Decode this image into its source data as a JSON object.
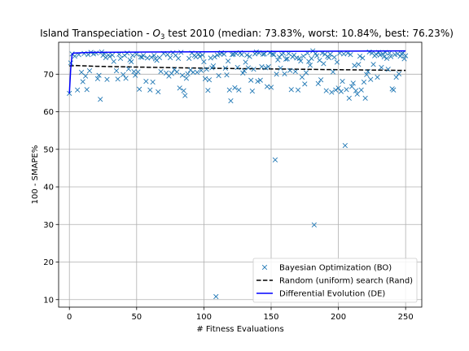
{
  "chart_data": {
    "type": "scatter",
    "title": "Island Transpeciation - O3 test 2010 (median: 73.83%, worst: 10.84%, best: 76.23%)",
    "title_parts": {
      "prefix": "Island Transpeciation - ",
      "symbol": "O",
      "subscript": "3",
      "suffix": " test 2010 (median: 73.83%, worst: 10.84%, best: 76.23%)"
    },
    "xlabel": "# Fitness Evaluations",
    "ylabel": "100 - SMAPE%",
    "xlim": [
      -8,
      262
    ],
    "ylim": [
      8,
      78.5
    ],
    "x_ticks": [
      0,
      50,
      100,
      150,
      200,
      250
    ],
    "y_ticks": [
      10,
      20,
      30,
      40,
      50,
      60,
      70
    ],
    "grid": true,
    "legend_position": "lower-right",
    "colors": {
      "bo": "#1f77b4",
      "rand": "#000000",
      "de": "#0000ff",
      "grid": "#b0b0b0"
    },
    "series": [
      {
        "name": "Bayesian Optimization (BO)",
        "kind": "scatter-x",
        "points": [
          [
            0,
            64.9
          ],
          [
            1,
            73
          ],
          [
            2,
            75.4
          ],
          [
            4,
            74.8
          ],
          [
            6,
            65.8
          ],
          [
            7,
            75.2
          ],
          [
            9,
            70.5
          ],
          [
            10,
            68
          ],
          [
            11,
            75.5
          ],
          [
            12,
            69.5
          ],
          [
            13,
            65.9
          ],
          [
            14,
            75.2
          ],
          [
            15,
            70.9
          ],
          [
            16,
            75.8
          ],
          [
            18,
            75.4
          ],
          [
            20,
            75.6
          ],
          [
            21,
            68.8
          ],
          [
            22,
            69.7
          ],
          [
            23,
            63.3
          ],
          [
            24,
            75.9
          ],
          [
            25,
            75
          ],
          [
            26,
            75.4
          ],
          [
            27,
            74.4
          ],
          [
            28,
            68.6
          ],
          [
            29,
            75.1
          ],
          [
            30,
            74.7
          ],
          [
            32,
            75.1
          ],
          [
            33,
            73.4
          ],
          [
            35,
            70.9
          ],
          [
            36,
            68.7
          ],
          [
            37,
            75.3
          ],
          [
            38,
            74.2
          ],
          [
            40,
            69.9
          ],
          [
            41,
            75
          ],
          [
            42,
            68.9
          ],
          [
            43,
            75.6
          ],
          [
            44,
            71.4
          ],
          [
            45,
            73.8
          ],
          [
            46,
            73.3
          ],
          [
            47,
            75
          ],
          [
            48,
            70.7
          ],
          [
            49,
            69.7
          ],
          [
            50,
            75.3
          ],
          [
            51,
            70.6
          ],
          [
            52,
            66
          ],
          [
            53,
            74.6
          ],
          [
            54,
            74.5
          ],
          [
            55,
            75
          ],
          [
            57,
            68.1
          ],
          [
            58,
            74.3
          ],
          [
            60,
            65.8
          ],
          [
            61,
            74.5
          ],
          [
            62,
            67.9
          ],
          [
            63,
            75
          ],
          [
            64,
            74.1
          ],
          [
            65,
            73.7
          ],
          [
            66,
            65.3
          ],
          [
            67,
            74.4
          ],
          [
            68,
            70.7
          ],
          [
            70,
            75.5
          ],
          [
            72,
            70.3
          ],
          [
            73,
            75.2
          ],
          [
            74,
            69.5
          ],
          [
            75,
            74.4
          ],
          [
            76,
            70.2
          ],
          [
            77,
            75.7
          ],
          [
            78,
            71.2
          ],
          [
            79,
            75
          ],
          [
            80,
            70.6
          ],
          [
            81,
            74.2
          ],
          [
            82,
            66.3
          ],
          [
            83,
            75.8
          ],
          [
            84,
            69.7
          ],
          [
            85,
            65.6
          ],
          [
            86,
            64.3
          ],
          [
            87,
            68.9
          ],
          [
            88,
            70.1
          ],
          [
            89,
            74.2
          ],
          [
            90,
            71.1
          ],
          [
            91,
            75.6
          ],
          [
            92,
            70.5
          ],
          [
            93,
            75
          ],
          [
            94,
            74.6
          ],
          [
            95,
            70.5
          ],
          [
            96,
            75.3
          ],
          [
            97,
            74.7
          ],
          [
            98,
            71
          ],
          [
            99,
            75.1
          ],
          [
            100,
            73.3
          ],
          [
            101,
            68.8
          ],
          [
            102,
            71.3
          ],
          [
            103,
            65.7
          ],
          [
            104,
            68.5
          ],
          [
            105,
            74.3
          ],
          [
            106,
            71.7
          ],
          [
            107,
            72.2
          ],
          [
            108,
            74.6
          ],
          [
            109,
            10.8
          ],
          [
            110,
            75.1
          ],
          [
            111,
            69.6
          ],
          [
            112,
            75.3
          ],
          [
            113,
            75.7
          ],
          [
            115,
            75.3
          ],
          [
            116,
            71.6
          ],
          [
            117,
            69.8
          ],
          [
            118,
            73.5
          ],
          [
            119,
            65.8
          ],
          [
            120,
            62.9
          ],
          [
            121,
            75.2
          ],
          [
            122,
            75.3
          ],
          [
            123,
            66.4
          ],
          [
            124,
            75.5
          ],
          [
            125,
            71.8
          ],
          [
            126,
            65.8
          ],
          [
            127,
            75.7
          ],
          [
            128,
            75.2
          ],
          [
            129,
            70.3
          ],
          [
            130,
            70.9
          ],
          [
            131,
            73.2
          ],
          [
            132,
            75.1
          ],
          [
            133,
            71.7
          ],
          [
            134,
            74.7
          ],
          [
            135,
            68.4
          ],
          [
            136,
            65.5
          ],
          [
            137,
            71.3
          ],
          [
            138,
            75.4
          ],
          [
            139,
            75.9
          ],
          [
            140,
            68.1
          ],
          [
            141,
            75.7
          ],
          [
            142,
            68.4
          ],
          [
            143,
            72
          ],
          [
            144,
            75.3
          ],
          [
            145,
            75.4
          ],
          [
            146,
            71.7
          ],
          [
            147,
            66.7
          ],
          [
            148,
            72
          ],
          [
            149,
            75.7
          ],
          [
            150,
            66.5
          ],
          [
            151,
            75.3
          ],
          [
            152,
            75.2
          ],
          [
            153,
            47.2
          ],
          [
            154,
            70
          ],
          [
            155,
            73.8
          ],
          [
            156,
            74.6
          ],
          [
            157,
            71.6
          ],
          [
            158,
            75.2
          ],
          [
            159,
            75.6
          ],
          [
            160,
            70.1
          ],
          [
            161,
            74
          ],
          [
            162,
            74.1
          ],
          [
            163,
            75.5
          ],
          [
            164,
            71
          ],
          [
            165,
            65.9
          ],
          [
            166,
            74.6
          ],
          [
            167,
            75.1
          ],
          [
            168,
            70.7
          ],
          [
            169,
            74.3
          ],
          [
            170,
            65.8
          ],
          [
            171,
            74.2
          ],
          [
            172,
            73.5
          ],
          [
            173,
            69.2
          ],
          [
            174,
            74.8
          ],
          [
            175,
            67.4
          ],
          [
            176,
            70.4
          ],
          [
            177,
            75.6
          ],
          [
            178,
            73.4
          ],
          [
            179,
            72.4
          ],
          [
            180,
            74.2
          ],
          [
            181,
            76.2
          ],
          [
            182,
            29.9
          ],
          [
            183,
            75.5
          ],
          [
            184,
            74.9
          ],
          [
            185,
            67.5
          ],
          [
            186,
            73.7
          ],
          [
            187,
            68.5
          ],
          [
            188,
            75.6
          ],
          [
            189,
            72.8
          ],
          [
            190,
            75.3
          ],
          [
            191,
            65.6
          ],
          [
            192,
            74.7
          ],
          [
            193,
            74.4
          ],
          [
            194,
            75.3
          ],
          [
            195,
            65.2
          ],
          [
            196,
            70.6
          ],
          [
            197,
            74.5
          ],
          [
            198,
            65.8
          ],
          [
            199,
            73.2
          ],
          [
            200,
            66.3
          ],
          [
            201,
            75.6
          ],
          [
            202,
            65.4
          ],
          [
            203,
            68.1
          ],
          [
            204,
            75.4
          ],
          [
            205,
            51
          ],
          [
            206,
            65.9
          ],
          [
            207,
            75.6
          ],
          [
            208,
            63.6
          ],
          [
            209,
            75.2
          ],
          [
            210,
            66.7
          ],
          [
            211,
            67.6
          ],
          [
            212,
            72.3
          ],
          [
            213,
            65.6
          ],
          [
            214,
            64.7
          ],
          [
            215,
            72.6
          ],
          [
            216,
            74.8
          ],
          [
            217,
            65.8
          ],
          [
            218,
            74.3
          ],
          [
            219,
            67.9
          ],
          [
            220,
            63.6
          ],
          [
            221,
            69.9
          ],
          [
            222,
            70.7
          ],
          [
            223,
            75.9
          ],
          [
            224,
            68.6
          ],
          [
            225,
            75.6
          ],
          [
            226,
            72.6
          ],
          [
            227,
            74.9
          ],
          [
            228,
            75.3
          ],
          [
            229,
            69.2
          ],
          [
            230,
            75.8
          ],
          [
            231,
            75.1
          ],
          [
            232,
            71.8
          ],
          [
            233,
            75.4
          ],
          [
            234,
            74.6
          ],
          [
            235,
            75.8
          ],
          [
            236,
            74.2
          ],
          [
            237,
            71.3
          ],
          [
            238,
            75.6
          ],
          [
            239,
            74.7
          ],
          [
            240,
            66.1
          ],
          [
            241,
            65.8
          ],
          [
            242,
            75.2
          ],
          [
            243,
            69.2
          ],
          [
            244,
            75.4
          ],
          [
            245,
            70.1
          ],
          [
            246,
            74.8
          ],
          [
            247,
            75.4
          ],
          [
            248,
            75.6
          ],
          [
            249,
            74.1
          ],
          [
            250,
            74.9
          ]
        ]
      },
      {
        "name": "Random (uniform) search (Rand)",
        "kind": "line-dashed",
        "x": [
          0,
          5,
          20,
          50,
          100,
          150,
          200,
          250
        ],
        "y": [
          72.2,
          72.3,
          72.1,
          71.9,
          71.6,
          71.4,
          71.2,
          71.0
        ]
      },
      {
        "name": "Differential Evolution (DE)",
        "kind": "line-solid",
        "x": [
          0,
          1,
          2,
          3,
          15,
          60,
          120,
          180,
          250
        ],
        "y": [
          64.9,
          71.5,
          75.2,
          75.6,
          75.8,
          75.9,
          76.0,
          76.1,
          76.2
        ]
      }
    ]
  }
}
